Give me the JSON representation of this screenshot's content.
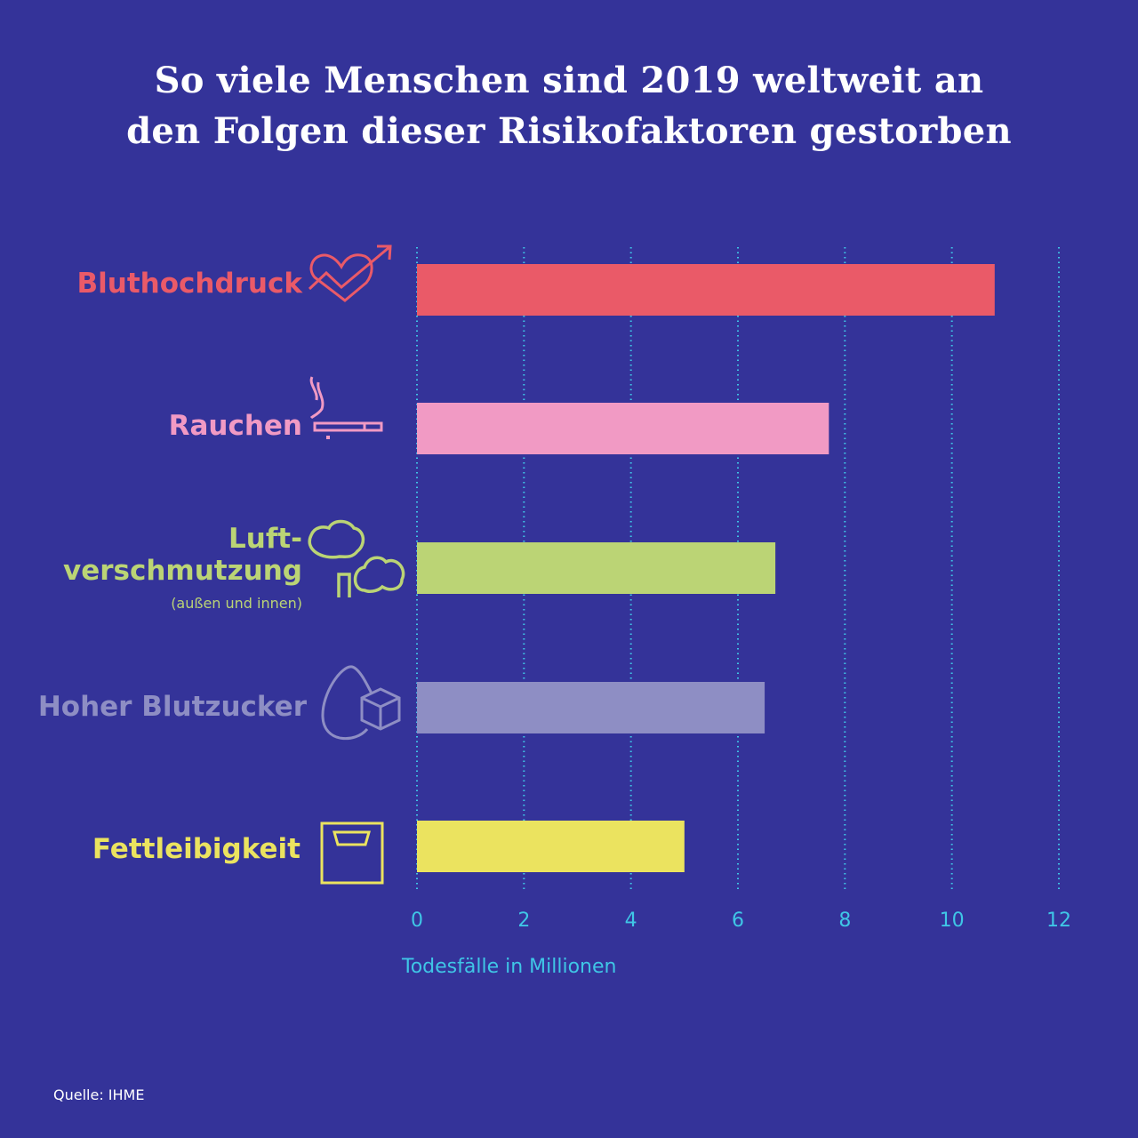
{
  "chart_data": {
    "type": "bar",
    "orientation": "horizontal",
    "title": "So viele Menschen sind 2019 weltweit an den Folgen dieser Risikofaktoren gestorben",
    "title_lines": [
      "So viele Menschen sind 2019 weltweit an",
      "den Folgen dieser Risikofaktoren gestorben"
    ],
    "categories": [
      "Bluthochdruck",
      "Rauchen",
      "Luft-verschmutzung",
      "Hoher Blutzucker",
      "Fettleibigkeit"
    ],
    "category_labels": [
      {
        "lines": [
          "Bluthochdruck"
        ],
        "sub": "",
        "icon": "heart-arrow-icon"
      },
      {
        "lines": [
          "Rauchen"
        ],
        "sub": "",
        "icon": "cigarette-icon"
      },
      {
        "lines": [
          "Luft-",
          "verschmutzung"
        ],
        "sub": "(außen und innen)",
        "icon": "smoke-clouds-icon"
      },
      {
        "lines": [
          "Hoher Blutzucker"
        ],
        "sub": "",
        "icon": "egg-sugar-cube-icon"
      },
      {
        "lines": [
          "Fettleibigkeit"
        ],
        "sub": "",
        "icon": "scale-icon"
      }
    ],
    "values": [
      10.8,
      7.7,
      6.7,
      6.5,
      5.0
    ],
    "colors": [
      "#ea5a68",
      "#f19ac4",
      "#bbd475",
      "#8e8ec4",
      "#ebe35f"
    ],
    "xlabel": "Todesfälle in Millionen",
    "xlim": [
      0,
      12
    ],
    "xticks": [
      "0",
      "2",
      "4",
      "6",
      "8",
      "10",
      "12"
    ],
    "grid": true,
    "grid_color": "#3fc6e6",
    "background": "#343399"
  },
  "source": "Quelle: IHME"
}
